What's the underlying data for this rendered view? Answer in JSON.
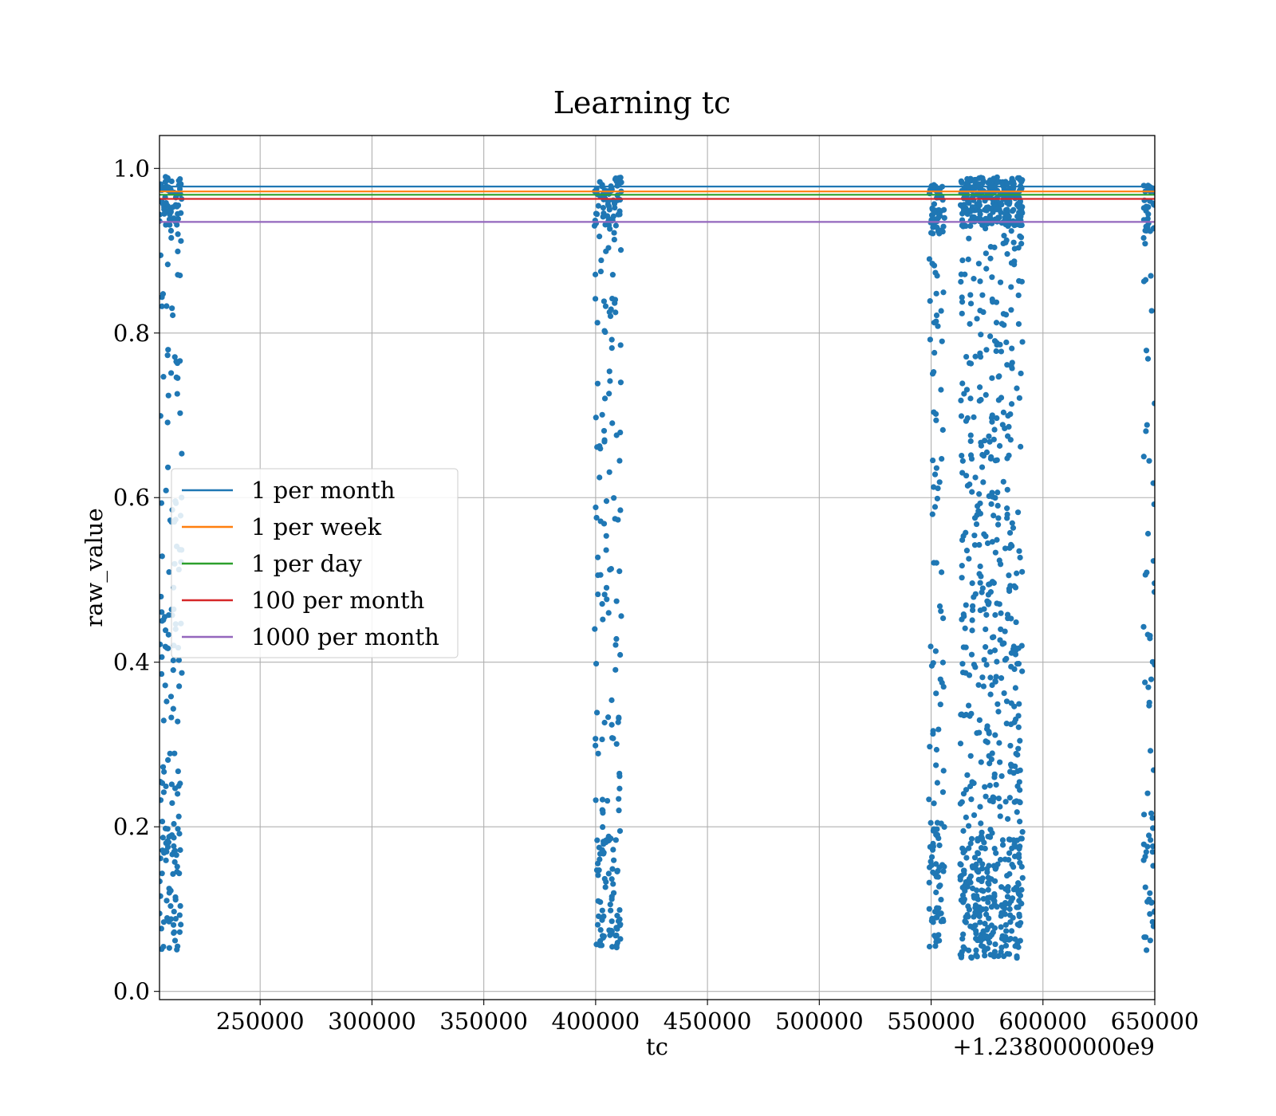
{
  "chart_data": {
    "type": "scatter",
    "title": "Learning tc",
    "xlabel": "tc",
    "ylabel": "raw_value",
    "x_offset_label": "+1.238000000e9",
    "x_ticks": [
      250000,
      300000,
      350000,
      400000,
      450000,
      500000,
      550000,
      600000,
      650000
    ],
    "x_tick_labels": [
      "250000",
      "300000",
      "350000",
      "400000",
      "450000",
      "500000",
      "550000",
      "600000",
      "650000"
    ],
    "y_ticks": [
      0.0,
      0.2,
      0.4,
      0.6,
      0.8,
      1.0
    ],
    "y_tick_labels": [
      "0.0",
      "0.2",
      "0.4",
      "0.6",
      "0.8",
      "1.0"
    ],
    "xlim": [
      205000,
      650000
    ],
    "ylim": [
      -0.01,
      1.04
    ],
    "grid": true,
    "legend_position": "center-left",
    "scatter": {
      "color": "#1f77b4",
      "clusters": [
        {
          "x_range": [
            205000,
            215000
          ],
          "y_range": [
            0.05,
            0.99
          ],
          "count": 230
        },
        {
          "x_range": [
            399500,
            411500
          ],
          "y_range": [
            0.05,
            0.99
          ],
          "count": 250
        },
        {
          "x_range": [
            549000,
            556000
          ],
          "y_range": [
            0.05,
            0.98
          ],
          "count": 170
        },
        {
          "x_range": [
            563000,
            591000
          ],
          "y_range": [
            0.04,
            0.99
          ],
          "count": 900
        },
        {
          "x_range": [
            645000,
            650000
          ],
          "y_range": [
            0.05,
            0.98
          ],
          "count": 100
        }
      ]
    },
    "series": [
      {
        "name": "1 per month",
        "type": "hline",
        "y": 0.978,
        "color": "#1f77b4"
      },
      {
        "name": "1 per week",
        "type": "hline",
        "y": 0.972,
        "color": "#ff7f0e"
      },
      {
        "name": "1 per day",
        "type": "hline",
        "y": 0.968,
        "color": "#2ca02c"
      },
      {
        "name": "100 per month",
        "type": "hline",
        "y": 0.963,
        "color": "#d62728"
      },
      {
        "name": "1000 per month",
        "type": "hline",
        "y": 0.935,
        "color": "#9467bd"
      }
    ]
  }
}
